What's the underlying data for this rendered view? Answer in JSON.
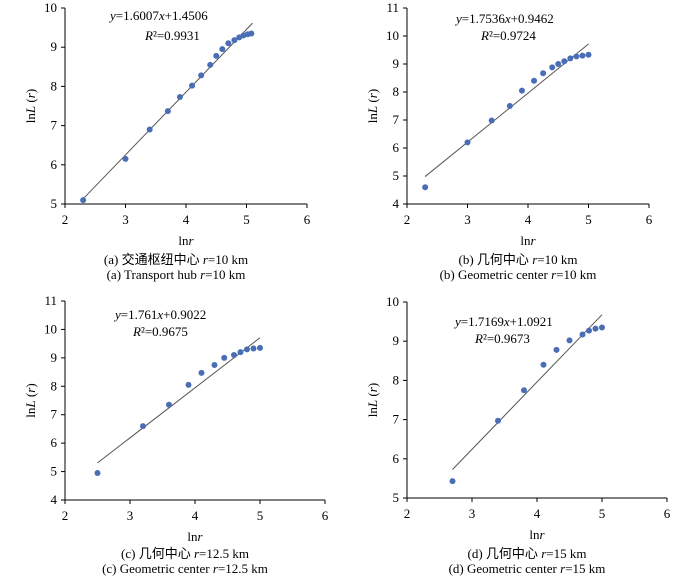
{
  "chart_data": [
    {
      "type": "scatter",
      "xlabel": "lnr",
      "ylabel": "lnL (r)",
      "xlim": [
        2,
        6
      ],
      "ylim": [
        5,
        10
      ],
      "xticks": [
        "2",
        "3",
        "4",
        "5",
        "6"
      ],
      "yticks": [
        "5",
        "6",
        "7",
        "8",
        "9",
        "10"
      ],
      "equation": "y=1.6007x+1.4506",
      "r2": "R²=0.9931",
      "slope": 1.6007,
      "intercept": 1.4506,
      "fit_x": [
        2.3,
        5.1
      ],
      "x": [
        2.3,
        3.0,
        3.4,
        3.7,
        3.9,
        4.1,
        4.25,
        4.4,
        4.5,
        4.6,
        4.7,
        4.8,
        4.88,
        4.95,
        5.02,
        5.08
      ],
      "y": [
        5.1,
        6.15,
        6.9,
        7.37,
        7.73,
        8.02,
        8.28,
        8.55,
        8.78,
        8.95,
        9.1,
        9.18,
        9.25,
        9.3,
        9.33,
        9.35
      ],
      "caption_cn": "(a) 交通枢纽中心 r=10 km",
      "caption_en": "(a) Transport hub r=10 km"
    },
    {
      "type": "scatter",
      "xlabel": "lnr",
      "ylabel": "lnL (r)",
      "xlim": [
        2,
        6
      ],
      "ylim": [
        4,
        11
      ],
      "xticks": [
        "2",
        "3",
        "4",
        "5",
        "6"
      ],
      "yticks": [
        "4",
        "5",
        "6",
        "7",
        "8",
        "9",
        "10",
        "11"
      ],
      "equation": "y=1.7536x+0.9462",
      "r2": "R²=0.9724",
      "slope": 1.7536,
      "intercept": 0.9462,
      "fit_x": [
        2.3,
        5.0
      ],
      "x": [
        2.3,
        3.0,
        3.4,
        3.7,
        3.9,
        4.1,
        4.25,
        4.4,
        4.5,
        4.6,
        4.7,
        4.8,
        4.9,
        5.0
      ],
      "y": [
        4.6,
        6.2,
        6.98,
        7.5,
        8.05,
        8.4,
        8.67,
        8.88,
        9.0,
        9.1,
        9.2,
        9.27,
        9.3,
        9.33
      ],
      "caption_cn": "(b) 几何中心 r=10 km",
      "caption_en": "(b) Geometric center r=10 km"
    },
    {
      "type": "scatter",
      "xlabel": "lnr",
      "ylabel": "lnL (r)",
      "xlim": [
        2,
        6
      ],
      "ylim": [
        4,
        11
      ],
      "xticks": [
        "2",
        "3",
        "4",
        "5",
        "6"
      ],
      "yticks": [
        "4",
        "5",
        "6",
        "7",
        "8",
        "9",
        "10",
        "11"
      ],
      "equation": "y=1.761x+0.9022",
      "r2": "R²=0.9675",
      "slope": 1.761,
      "intercept": 0.9022,
      "fit_x": [
        2.5,
        5.0
      ],
      "x": [
        2.5,
        3.2,
        3.6,
        3.9,
        4.1,
        4.3,
        4.45,
        4.6,
        4.7,
        4.8,
        4.9,
        5.0
      ],
      "y": [
        4.95,
        6.6,
        7.35,
        8.05,
        8.47,
        8.75,
        9.0,
        9.1,
        9.2,
        9.3,
        9.33,
        9.35
      ],
      "caption_cn": "(c) 几何中心 r=12.5 km",
      "caption_en": "(c) Geometric center r=12.5 km"
    },
    {
      "type": "scatter",
      "xlabel": "lnr",
      "ylabel": "lnL (r)",
      "xlim": [
        2,
        6
      ],
      "ylim": [
        5,
        10
      ],
      "xticks": [
        "2",
        "3",
        "4",
        "5",
        "6"
      ],
      "yticks": [
        "5",
        "6",
        "7",
        "8",
        "9",
        "10"
      ],
      "equation": "y=1.7169x+1.0921",
      "r2": "R²=0.9673",
      "slope": 1.7169,
      "intercept": 1.0921,
      "fit_x": [
        2.7,
        5.0
      ],
      "x": [
        2.7,
        3.4,
        3.8,
        4.1,
        4.3,
        4.5,
        4.7,
        4.8,
        4.9,
        5.0
      ],
      "y": [
        5.43,
        6.97,
        7.75,
        8.4,
        8.78,
        9.02,
        9.17,
        9.27,
        9.32,
        9.35
      ],
      "caption_cn": "(d) 几何中心 r=15 km",
      "caption_en": "(d) Geometric center r=15 km"
    }
  ]
}
